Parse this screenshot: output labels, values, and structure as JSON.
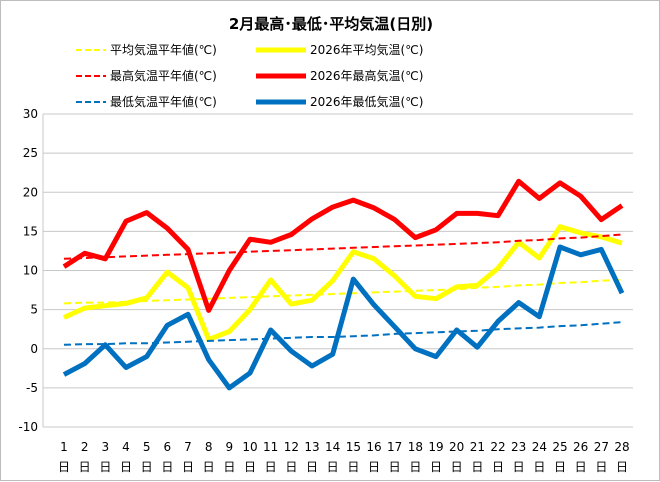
{
  "chart_data": {
    "type": "line",
    "title": "2月最高･最低･平均気温(日別)",
    "ylim": [
      -10,
      30
    ],
    "yticks": [
      -10,
      -5,
      0,
      5,
      10,
      15,
      20,
      25,
      30
    ],
    "grid": true,
    "legend_placement": "top",
    "x_unit": "日",
    "x": [
      1,
      2,
      3,
      4,
      5,
      6,
      7,
      8,
      9,
      10,
      11,
      12,
      13,
      14,
      15,
      16,
      17,
      18,
      19,
      20,
      21,
      22,
      23,
      24,
      25,
      26,
      27,
      28
    ],
    "series": [
      {
        "name": "平均気温平年値(℃)",
        "color": "#ffff00",
        "dashed": true,
        "width": 2,
        "values": [
          5.8,
          5.9,
          5.9,
          6.0,
          6.1,
          6.2,
          6.3,
          6.4,
          6.5,
          6.6,
          6.7,
          6.8,
          6.9,
          7.0,
          7.1,
          7.2,
          7.3,
          7.4,
          7.5,
          7.6,
          7.8,
          7.9,
          8.1,
          8.2,
          8.4,
          8.5,
          8.7,
          8.8
        ]
      },
      {
        "name": "2026年平均気温(℃)",
        "color": "#ffff00",
        "dashed": false,
        "width": 5,
        "values": [
          4.0,
          5.2,
          5.5,
          5.8,
          6.5,
          9.8,
          7.8,
          1.2,
          2.2,
          5.0,
          8.8,
          5.7,
          6.2,
          8.7,
          12.4,
          11.5,
          9.3,
          6.7,
          6.4,
          7.9,
          8.1,
          10.3,
          13.6,
          11.6,
          15.6,
          14.8,
          14.3,
          13.5
        ]
      },
      {
        "name": "最高気温平年値(℃)",
        "color": "#ff0000",
        "dashed": true,
        "width": 2,
        "values": [
          11.5,
          11.6,
          11.7,
          11.8,
          11.9,
          12.0,
          12.1,
          12.2,
          12.3,
          12.4,
          12.5,
          12.6,
          12.7,
          12.8,
          12.9,
          13.0,
          13.1,
          13.2,
          13.3,
          13.4,
          13.5,
          13.6,
          13.8,
          13.9,
          14.1,
          14.2,
          14.4,
          14.6
        ]
      },
      {
        "name": "2026年最高気温(℃)",
        "color": "#ff0000",
        "dashed": false,
        "width": 5,
        "values": [
          10.5,
          12.2,
          11.5,
          16.3,
          17.4,
          15.4,
          12.7,
          4.9,
          10.0,
          14.0,
          13.6,
          14.6,
          16.6,
          18.1,
          19.0,
          18.0,
          16.5,
          14.2,
          15.2,
          17.3,
          17.3,
          17.0,
          21.4,
          19.2,
          21.2,
          19.5,
          16.5,
          18.3
        ]
      },
      {
        "name": "最低気温平年値(℃)",
        "color": "#0070c0",
        "dashed": true,
        "width": 2,
        "values": [
          0.5,
          0.6,
          0.6,
          0.7,
          0.7,
          0.8,
          0.9,
          1.0,
          1.1,
          1.2,
          1.3,
          1.4,
          1.5,
          1.5,
          1.6,
          1.7,
          1.9,
          2.0,
          2.1,
          2.2,
          2.3,
          2.5,
          2.6,
          2.7,
          2.9,
          3.0,
          3.2,
          3.4
        ]
      },
      {
        "name": "2026年最低気温(℃)",
        "color": "#0070c0",
        "dashed": false,
        "width": 5,
        "values": [
          -3.3,
          -1.9,
          0.5,
          -2.4,
          -1.0,
          3.0,
          4.4,
          -1.4,
          -5.0,
          -3.1,
          2.4,
          -0.3,
          -2.2,
          -0.7,
          8.9,
          5.6,
          2.8,
          0.0,
          -1.0,
          2.4,
          0.2,
          3.5,
          5.9,
          4.1,
          13.0,
          12.0,
          12.7,
          7.1
        ]
      }
    ]
  }
}
